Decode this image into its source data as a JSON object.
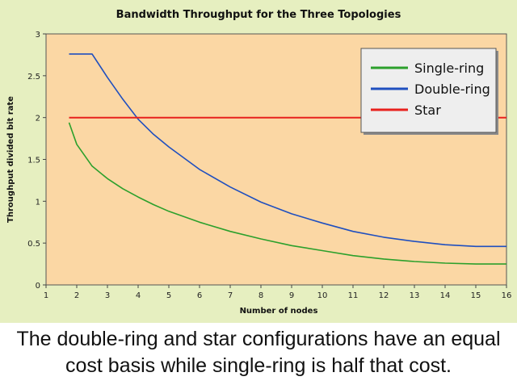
{
  "chart_data": {
    "type": "line",
    "title": "Bandwidth Throughput for the Three Topologies",
    "xlabel": "Number of nodes",
    "ylabel": "Throughput divided bit rate",
    "xlim": [
      1,
      16
    ],
    "ylim": [
      0,
      3
    ],
    "xticks": [
      1,
      2,
      3,
      4,
      5,
      6,
      7,
      8,
      9,
      10,
      11,
      12,
      13,
      14,
      15,
      16
    ],
    "yticks": [
      0,
      0.5,
      1,
      1.5,
      2,
      2.5,
      3
    ],
    "ytick_labels": [
      "0",
      "0.5",
      "1",
      "1.5",
      "2",
      "2.5",
      "3"
    ],
    "grid": false,
    "legend_position": "top-right",
    "series": [
      {
        "name": "Single-ring",
        "color": "#2ca02c",
        "x": [
          1.75,
          2,
          2.5,
          3,
          3.5,
          4,
          4.5,
          5,
          6,
          7,
          8,
          9,
          10,
          11,
          12,
          13,
          14,
          15,
          16
        ],
        "y": [
          1.94,
          1.68,
          1.42,
          1.27,
          1.15,
          1.05,
          0.96,
          0.88,
          0.75,
          0.64,
          0.55,
          0.47,
          0.41,
          0.35,
          0.31,
          0.28,
          0.26,
          0.25,
          0.25
        ]
      },
      {
        "name": "Double-ring",
        "color": "#1f4fbf",
        "x": [
          1.75,
          2,
          2.5,
          3,
          3.5,
          4,
          4.5,
          5,
          6,
          7,
          8,
          9,
          10,
          11,
          12,
          13,
          14,
          15,
          16
        ],
        "y": [
          2.76,
          2.76,
          2.76,
          2.48,
          2.22,
          1.98,
          1.8,
          1.65,
          1.38,
          1.17,
          0.99,
          0.85,
          0.74,
          0.64,
          0.57,
          0.52,
          0.48,
          0.46,
          0.46
        ]
      },
      {
        "name": "Star",
        "color": "#e8211d",
        "x": [
          1.75,
          16
        ],
        "y": [
          2.0,
          2.0
        ]
      }
    ]
  },
  "caption": {
    "line1": "The double-ring and star configurations have an equal",
    "line2": "cost basis while single-ring is half that cost."
  }
}
